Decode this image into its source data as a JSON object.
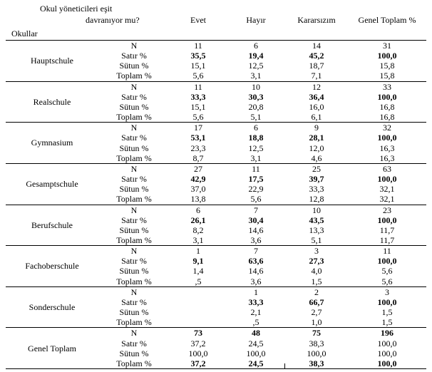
{
  "header": {
    "question1": "Okul yöneticileri eşit",
    "question2": "davranıyor mu?",
    "schools_label": "Okullar",
    "cols": {
      "evet": "Evet",
      "hayir": "Hayır",
      "karar": "Kararsızım",
      "total": "Genel Toplam %"
    }
  },
  "metrics": {
    "n": "N",
    "row": "Satır %",
    "col": "Sütun %",
    "tot": "Toplam %"
  },
  "groups": [
    {
      "school": "Hauptschule",
      "rows": [
        {
          "m": "N",
          "evet": "11",
          "hayir": "6",
          "karar": "14",
          "total": "31",
          "bold": false
        },
        {
          "m": "Satır %",
          "evet": "35,5",
          "hayir": "19,4",
          "karar": "45,2",
          "total": "100,0",
          "bold": true
        },
        {
          "m": "Sütun %",
          "evet": "15,1",
          "hayir": "12,5",
          "karar": "18,7",
          "total": "15,8",
          "bold": false
        },
        {
          "m": "Toplam %",
          "evet": "5,6",
          "hayir": "3,1",
          "karar": "7,1",
          "total": "15,8",
          "bold": false
        }
      ]
    },
    {
      "school": "Realschule",
      "rows": [
        {
          "m": "N",
          "evet": "11",
          "hayir": "10",
          "karar": "12",
          "total": "33",
          "bold": false
        },
        {
          "m": "Satır %",
          "evet": "33,3",
          "hayir": "30,3",
          "karar": "36,4",
          "total": "100,0",
          "bold": true
        },
        {
          "m": "Sütun %",
          "evet": "15,1",
          "hayir": "20,8",
          "karar": "16,0",
          "total": "16,8",
          "bold": false
        },
        {
          "m": "Toplam %",
          "evet": "5,6",
          "hayir": "5,1",
          "karar": "6,1",
          "total": "16,8",
          "bold": false
        }
      ]
    },
    {
      "school": "Gymnasium",
      "rows": [
        {
          "m": "N",
          "evet": "17",
          "hayir": "6",
          "karar": "9",
          "total": "32",
          "bold": false
        },
        {
          "m": "Satır %",
          "evet": "53,1",
          "hayir": "18,8",
          "karar": "28,1",
          "total": "100,0",
          "bold": true
        },
        {
          "m": "Sütun %",
          "evet": "23,3",
          "hayir": "12,5",
          "karar": "12,0",
          "total": "16,3",
          "bold": false
        },
        {
          "m": "Toplam %",
          "evet": "8,7",
          "hayir": "3,1",
          "karar": "4,6",
          "total": "16,3",
          "bold": false
        }
      ]
    },
    {
      "school": "Gesamptschule",
      "rows": [
        {
          "m": "N",
          "evet": "27",
          "hayir": "11",
          "karar": "25",
          "total": "63",
          "bold": false
        },
        {
          "m": "Satır %",
          "evet": "42,9",
          "hayir": "17,5",
          "karar": "39,7",
          "total": "100,0",
          "bold": true
        },
        {
          "m": "Sütun %",
          "evet": "37,0",
          "hayir": "22,9",
          "karar": "33,3",
          "total": "32,1",
          "bold": false
        },
        {
          "m": "Toplam %",
          "evet": "13,8",
          "hayir": "5,6",
          "karar": "12,8",
          "total": "32,1",
          "bold": false
        }
      ]
    },
    {
      "school": "Berufschule",
      "rows": [
        {
          "m": "N",
          "evet": "6",
          "hayir": "7",
          "karar": "10",
          "total": "23",
          "bold": false
        },
        {
          "m": "Satır %",
          "evet": "26,1",
          "hayir": "30,4",
          "karar": "43,5",
          "total": "100,0",
          "bold": true
        },
        {
          "m": "Sütun %",
          "evet": "8,2",
          "hayir": "14,6",
          "karar": "13,3",
          "total": "11,7",
          "bold": false
        },
        {
          "m": "Toplam %",
          "evet": "3,1",
          "hayir": "3,6",
          "karar": "5,1",
          "total": "11,7",
          "bold": false
        }
      ]
    },
    {
      "school": "Fachoberschule",
      "rows": [
        {
          "m": "N",
          "evet": "1",
          "hayir": "7",
          "karar": "3",
          "total": "11",
          "bold": false
        },
        {
          "m": "Satır %",
          "evet": "9,1",
          "hayir": "63,6",
          "karar": "27,3",
          "total": "100,0",
          "bold": true
        },
        {
          "m": "Sütun %",
          "evet": "1,4",
          "hayir": "14,6",
          "karar": "4,0",
          "total": "5,6",
          "bold": false
        },
        {
          "m": "Toplam %",
          "evet": ",5",
          "hayir": "3,6",
          "karar": "1,5",
          "total": "5,6",
          "bold": false
        }
      ]
    },
    {
      "school": "Sonderschule",
      "rows": [
        {
          "m": "N",
          "evet": "",
          "hayir": "1",
          "karar": "2",
          "total": "3",
          "bold": false
        },
        {
          "m": "Satır %",
          "evet": "",
          "hayir": "33,3",
          "karar": "66,7",
          "total": "100,0",
          "bold": true
        },
        {
          "m": "Sütun %",
          "evet": "",
          "hayir": "2,1",
          "karar": "2,7",
          "total": "1,5",
          "bold": false
        },
        {
          "m": "Toplam %",
          "evet": "",
          "hayir": ",5",
          "karar": "1,0",
          "total": "1,5",
          "bold": false
        }
      ]
    },
    {
      "school": "Genel Toplam",
      "rows": [
        {
          "m": "N",
          "evet": "73",
          "hayir": "48",
          "karar": "75",
          "total": "196",
          "boldcells": true
        },
        {
          "m": "Satır %",
          "evet": "37,2",
          "hayir": "24,5",
          "karar": "38,3",
          "total": "100,0",
          "bold": false
        },
        {
          "m": "Sütun %",
          "evet": "100,0",
          "hayir": "100,0",
          "karar": "100,0",
          "total": "100,0",
          "bold": false
        },
        {
          "m": "Toplam %",
          "evet": "37,2",
          "hayir": "24,5",
          "karar": "38,3",
          "total": "100,0",
          "boldcells": true,
          "tick": true
        }
      ]
    }
  ]
}
